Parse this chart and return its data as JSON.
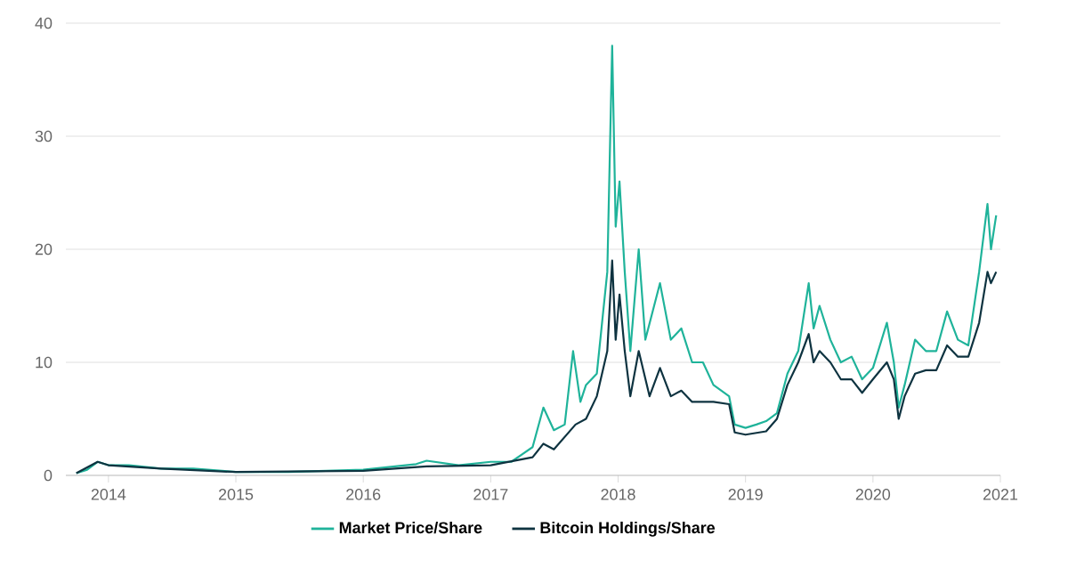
{
  "chart_data": {
    "type": "line",
    "xlim": [
      "2013-09-01",
      "2021-01-01"
    ],
    "xticks": [
      "2014",
      "2015",
      "2016",
      "2017",
      "2018",
      "2019",
      "2020",
      "2021"
    ],
    "ylim": [
      0,
      40
    ],
    "yticks": [
      0,
      10,
      20,
      30,
      40
    ],
    "grid": "y",
    "legend": "bottom",
    "marker": "none",
    "line_style": "solid",
    "series": [
      {
        "name": "Market Price/Share",
        "color": "#1fb39a",
        "x": [
          "2013-10-01",
          "2013-11-01",
          "2013-12-01",
          "2014-01-01",
          "2014-03-01",
          "2014-06-01",
          "2014-09-01",
          "2015-01-01",
          "2015-06-01",
          "2016-01-01",
          "2016-06-01",
          "2016-07-01",
          "2016-10-01",
          "2017-01-01",
          "2017-03-01",
          "2017-05-01",
          "2017-06-01",
          "2017-07-01",
          "2017-08-01",
          "2017-08-25",
          "2017-09-15",
          "2017-10-01",
          "2017-11-01",
          "2017-12-01",
          "2017-12-15",
          "2017-12-25",
          "2018-01-05",
          "2018-01-20",
          "2018-02-05",
          "2018-03-01",
          "2018-03-20",
          "2018-05-01",
          "2018-06-01",
          "2018-07-01",
          "2018-08-01",
          "2018-09-01",
          "2018-10-01",
          "2018-11-15",
          "2018-12-01",
          "2019-01-01",
          "2019-02-01",
          "2019-03-01",
          "2019-04-01",
          "2019-05-01",
          "2019-06-01",
          "2019-07-01",
          "2019-07-15",
          "2019-08-01",
          "2019-09-01",
          "2019-10-01",
          "2019-11-01",
          "2019-12-01",
          "2020-01-01",
          "2020-02-10",
          "2020-03-01",
          "2020-03-15",
          "2020-04-01",
          "2020-05-01",
          "2020-06-01",
          "2020-07-01",
          "2020-08-01",
          "2020-09-01",
          "2020-10-01",
          "2020-11-01",
          "2020-11-25",
          "2020-12-05",
          "2020-12-20"
        ],
        "values": [
          0.2,
          0.5,
          1.2,
          0.9,
          0.9,
          0.6,
          0.6,
          0.3,
          0.3,
          0.5,
          1.0,
          1.3,
          0.9,
          1.2,
          1.2,
          2.5,
          6.0,
          4.0,
          4.5,
          11,
          6.5,
          8,
          9,
          18,
          38,
          22,
          26,
          18,
          11,
          20,
          12,
          17,
          12,
          13,
          10,
          10,
          8,
          7,
          4.5,
          4.2,
          4.5,
          4.8,
          5.5,
          9,
          11,
          17,
          13,
          15,
          12,
          10,
          10.5,
          8.5,
          9.5,
          13.5,
          10,
          6,
          8,
          12,
          11,
          11,
          14.5,
          12,
          11.5,
          18,
          24,
          20,
          23
        ]
      },
      {
        "name": "Bitcoin Holdings/Share",
        "color": "#0e3340",
        "x": [
          "2013-10-01",
          "2013-12-01",
          "2014-01-01",
          "2014-06-01",
          "2015-01-01",
          "2016-01-01",
          "2016-07-01",
          "2017-01-01",
          "2017-05-01",
          "2017-06-01",
          "2017-07-01",
          "2017-09-01",
          "2017-10-01",
          "2017-11-01",
          "2017-12-01",
          "2017-12-15",
          "2017-12-25",
          "2018-01-05",
          "2018-01-20",
          "2018-02-05",
          "2018-03-01",
          "2018-04-01",
          "2018-05-01",
          "2018-06-01",
          "2018-07-01",
          "2018-08-01",
          "2018-09-01",
          "2018-10-01",
          "2018-11-15",
          "2018-12-01",
          "2019-01-01",
          "2019-03-01",
          "2019-04-01",
          "2019-05-01",
          "2019-06-01",
          "2019-07-01",
          "2019-07-15",
          "2019-08-01",
          "2019-09-01",
          "2019-10-01",
          "2019-11-01",
          "2019-12-01",
          "2020-01-01",
          "2020-02-10",
          "2020-03-01",
          "2020-03-15",
          "2020-04-01",
          "2020-05-01",
          "2020-06-01",
          "2020-07-01",
          "2020-08-01",
          "2020-09-01",
          "2020-10-01",
          "2020-11-01",
          "2020-11-25",
          "2020-12-05",
          "2020-12-20"
        ],
        "values": [
          0.2,
          1.2,
          0.9,
          0.6,
          0.3,
          0.4,
          0.8,
          0.9,
          1.6,
          2.8,
          2.3,
          4.5,
          5,
          7,
          11,
          19,
          12,
          16,
          11,
          7,
          11,
          7,
          9.5,
          7,
          7.5,
          6.5,
          6.5,
          6.5,
          6.3,
          3.8,
          3.6,
          3.9,
          5,
          8,
          10,
          12.5,
          10,
          11,
          10,
          8.5,
          8.5,
          7.3,
          8.5,
          10,
          8.5,
          5,
          7,
          9,
          9.3,
          9.3,
          11.5,
          10.5,
          10.5,
          13.5,
          18,
          17,
          18
        ]
      }
    ]
  }
}
